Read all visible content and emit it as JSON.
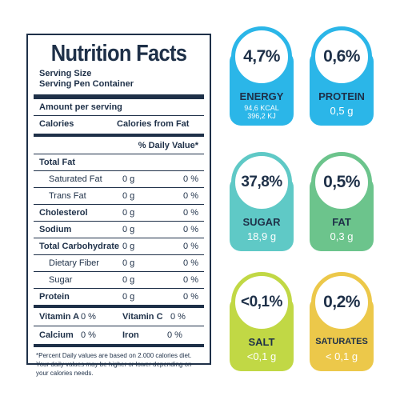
{
  "label": {
    "title": "Nutrition Facts",
    "serving_size": "Serving Size",
    "serving_per_container": "Serving Pen Container",
    "amount_per_serving": "Amount per serving",
    "calories": "Calories",
    "calories_from_fat": "Calories from Fat",
    "daily_value_header": "% Daily Value*",
    "nutrients": [
      {
        "name": "Total Fat",
        "bold": true,
        "indent": false,
        "grams": "",
        "pct": ""
      },
      {
        "name": "Saturated Fat",
        "bold": false,
        "indent": true,
        "grams": "0 g",
        "pct": "0 %"
      },
      {
        "name": "Trans Fat",
        "bold": false,
        "indent": true,
        "grams": "0 g",
        "pct": "0 %"
      },
      {
        "name": "Cholesterol",
        "bold": true,
        "indent": false,
        "grams": "0 g",
        "pct": "0 %"
      },
      {
        "name": "Sodium",
        "bold": true,
        "indent": false,
        "grams": "0 g",
        "pct": "0 %"
      },
      {
        "name": "Total Carbohydrate",
        "bold": true,
        "indent": false,
        "grams": "0 g",
        "pct": "0 %"
      },
      {
        "name": "Dietary Fiber",
        "bold": false,
        "indent": true,
        "grams": "0 g",
        "pct": "0 %"
      },
      {
        "name": "Sugar",
        "bold": false,
        "indent": true,
        "grams": "0 g",
        "pct": "0 %"
      },
      {
        "name": "Protein",
        "bold": true,
        "indent": false,
        "grams": "0 g",
        "pct": "0 %"
      }
    ],
    "vitamin_a_label": "Vitamin A",
    "vitamin_a_value": "0 %",
    "vitamin_c_label": "Vitamin C",
    "vitamin_c_value": "0 %",
    "calcium_label": "Calcium",
    "calcium_value": "0 %",
    "iron_label": "Iron",
    "iron_value": "0 %",
    "footnote": "*Percent Daily values are based on 2.000 calories diet. Your daily values may be higher or lower depending on your calories needs."
  },
  "badges": [
    {
      "percent": "4,7%",
      "name": "ENERGY",
      "amount_line1": "94,6 KCAL",
      "amount_line2": "396,2 KJ",
      "color": "#2bb6e8"
    },
    {
      "percent": "0,6%",
      "name": "PROTEIN",
      "amount": "0,5 g",
      "color": "#2bb6e8"
    },
    {
      "percent": "37,8%",
      "name": "SUGAR",
      "amount": "18,9 g",
      "color": "#5fc9c6"
    },
    {
      "percent": "0,5%",
      "name": "FAT",
      "amount": "0,3 g",
      "color": "#6cc48c"
    },
    {
      "percent": "<0,1%",
      "name": "SALT",
      "amount": "<0,1 g",
      "color": "#c1d845"
    },
    {
      "percent": "0,2%",
      "name": "SATURATES",
      "amount": "< 0,1 g",
      "color": "#ecc84a"
    }
  ]
}
